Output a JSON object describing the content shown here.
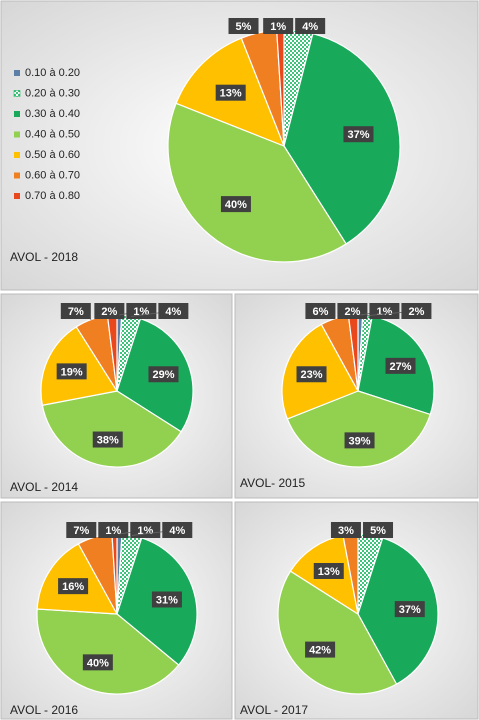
{
  "chart_data": [
    {
      "type": "pie",
      "title": "AVOL - 2018",
      "categories": [
        "0.10 à 0.20",
        "0.20 à 0.30",
        "0.30 à 0.40",
        "0.40 à 0.50",
        "0.50 à 0.60",
        "0.60 à 0.70",
        "0.70 à 0.80"
      ],
      "values": [
        0,
        4,
        37,
        40,
        13,
        5,
        1
      ],
      "value_labels": [
        null,
        "4%",
        "37%",
        "40%",
        "13%",
        "5%",
        "1%"
      ],
      "colors": [
        "#5b7fa6",
        "#00b050",
        "#19a95a",
        "#92d050",
        "#ffc000",
        "#f07f22",
        "#e8481c"
      ],
      "dotted": [
        false,
        true,
        false,
        false,
        false,
        false,
        false
      ],
      "legend": "left"
    },
    {
      "type": "pie",
      "title": "AVOL - 2014",
      "values": [
        1,
        4,
        29,
        38,
        19,
        7,
        2
      ],
      "value_labels": [
        "1%",
        "4%",
        "29%",
        "38%",
        "19%",
        "7%",
        "2%"
      ],
      "colors": [
        "#5b7fa6",
        "#00b050",
        "#19a95a",
        "#92d050",
        "#ffc000",
        "#f07f22",
        "#e8481c"
      ],
      "dotted": [
        false,
        true,
        false,
        false,
        false,
        false,
        false
      ]
    },
    {
      "type": "pie",
      "title": "AVOL- 2015",
      "values": [
        1,
        2,
        27,
        39,
        23,
        6,
        2
      ],
      "value_labels": [
        "1%",
        "2%",
        "27%",
        "39%",
        "23%",
        "6%",
        "2%"
      ],
      "colors": [
        "#5b7fa6",
        "#00b050",
        "#19a95a",
        "#92d050",
        "#ffc000",
        "#f07f22",
        "#e8481c"
      ],
      "dotted": [
        false,
        true,
        false,
        false,
        false,
        false,
        false
      ]
    },
    {
      "type": "pie",
      "title": "AVOL - 2016",
      "values": [
        1,
        4,
        31,
        40,
        16,
        7,
        1
      ],
      "value_labels": [
        "1%",
        "4%",
        "31%",
        "40%",
        "16%",
        "7%",
        "1%"
      ],
      "colors": [
        "#5b7fa6",
        "#00b050",
        "#19a95a",
        "#92d050",
        "#ffc000",
        "#f07f22",
        "#e8481c"
      ],
      "dotted": [
        false,
        true,
        false,
        false,
        false,
        false,
        false
      ]
    },
    {
      "type": "pie",
      "title": "AVOL - 2017",
      "values": [
        0,
        5,
        37,
        42,
        13,
        3,
        0
      ],
      "value_labels": [
        null,
        "5%",
        "37%",
        "42%",
        "13%",
        "3%",
        null
      ],
      "colors": [
        "#5b7fa6",
        "#00b050",
        "#19a95a",
        "#92d050",
        "#ffc000",
        "#f07f22",
        "#e8481c"
      ],
      "dotted": [
        false,
        true,
        false,
        false,
        false,
        false,
        false
      ]
    }
  ]
}
